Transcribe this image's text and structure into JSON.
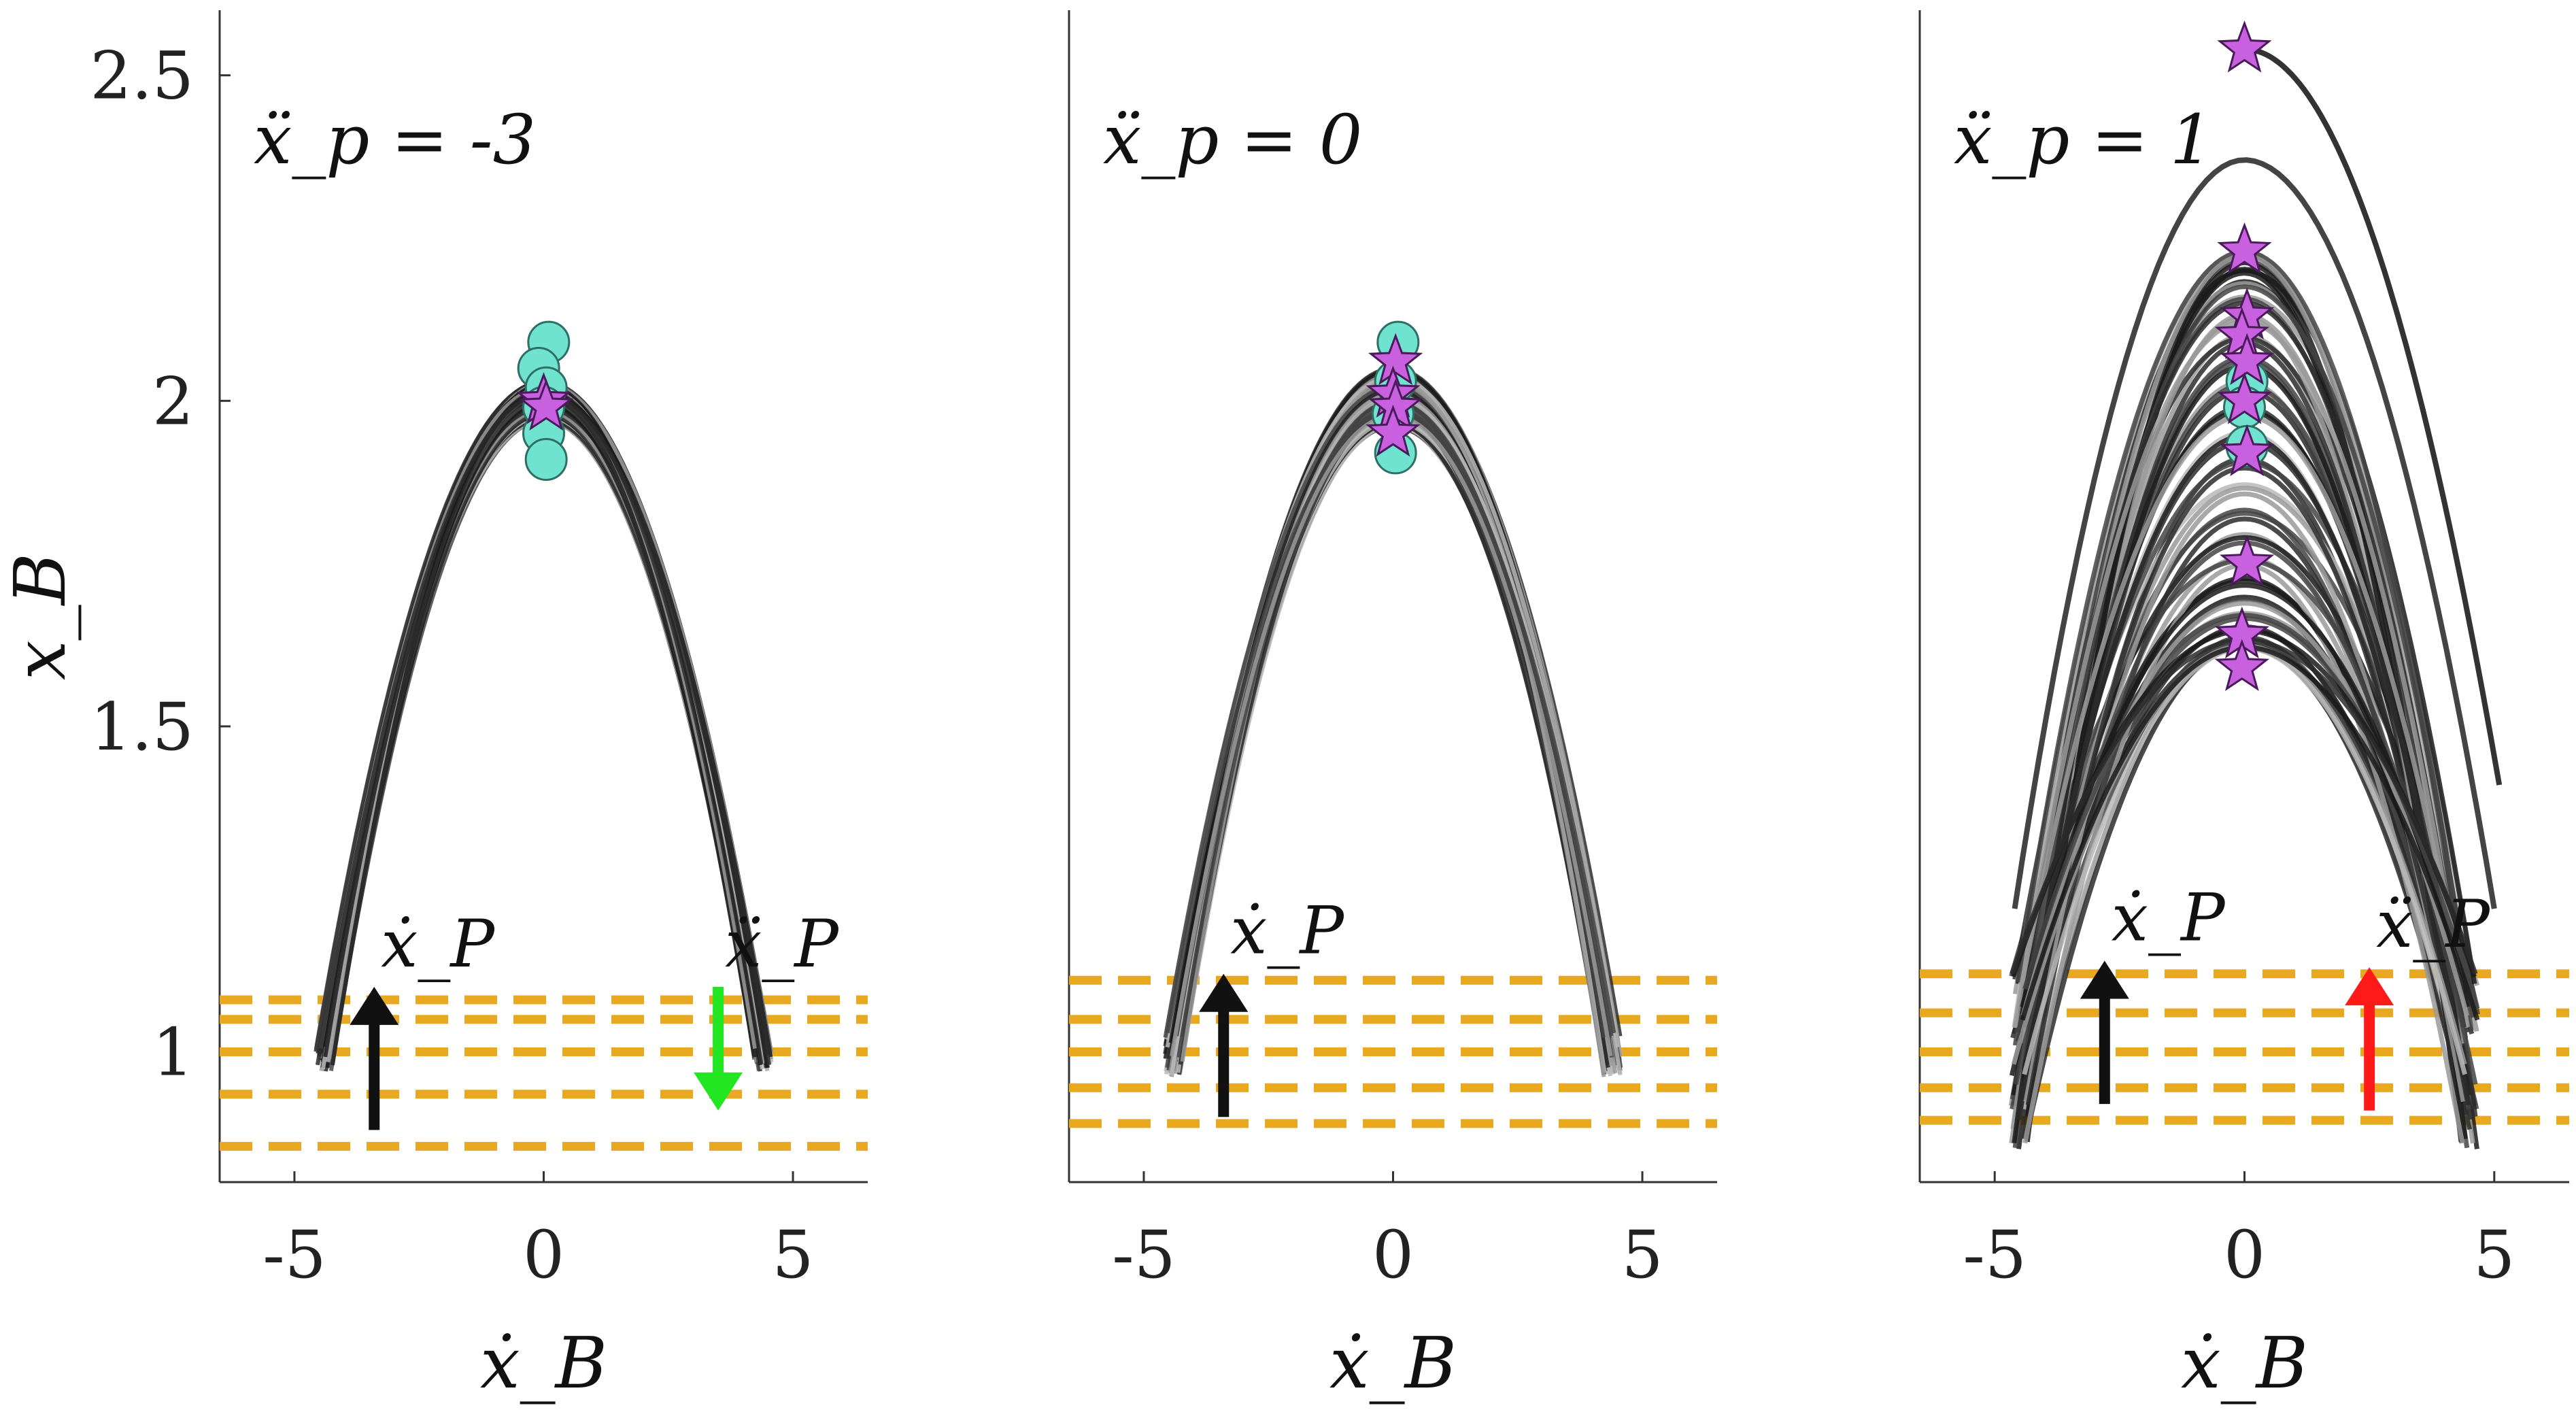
{
  "chart_data": [
    {
      "type": "line",
      "annotation": "ẍ_p = -3",
      "xlabel": "ẋ_B",
      "ylabel": "x_B",
      "xlim": [
        -6.5,
        6.5
      ],
      "ylim": [
        0.8,
        2.6
      ],
      "xticks": [
        -5,
        0,
        5
      ],
      "yticks": [
        1,
        1.5,
        2,
        2.5
      ],
      "xtick_labels": [
        "-5",
        "0",
        "5"
      ],
      "ytick_labels": [
        "1",
        "1.5",
        "2",
        "2.5"
      ],
      "trajectory_band": {
        "apex_x": 0,
        "apex_min": 1.97,
        "apex_max": 2.03,
        "end_min": 0.97,
        "end_max": 1.01,
        "speed": 4.4,
        "asymmetry": 0.0
      },
      "outliers": [],
      "circle_markers": [
        {
          "x": 0.1,
          "y": 2.09
        },
        {
          "x": -0.1,
          "y": 2.05
        },
        {
          "x": 0.05,
          "y": 2.02
        },
        {
          "x": 0.0,
          "y": 1.99
        },
        {
          "x": 0.0,
          "y": 1.95
        },
        {
          "x": 0.05,
          "y": 1.91
        }
      ],
      "star_markers": [
        {
          "x": 0.0,
          "y": 2.0
        },
        {
          "x": 0.05,
          "y": 1.99
        }
      ],
      "dashed_lines_y": [
        1.08,
        1.05,
        1.0,
        0.935,
        0.855
      ],
      "arrows": [
        {
          "label": "ẋ_P",
          "x": -3.4,
          "from": 0.88,
          "to": 1.1,
          "color": "#111111"
        },
        {
          "label": "ẍ_P",
          "x": 3.5,
          "from": 1.1,
          "to": 0.91,
          "color": "#22e622"
        }
      ]
    },
    {
      "type": "line",
      "annotation": "ẍ_p = 0",
      "xlabel": "ẋ_B",
      "ylabel": "",
      "xlim": [
        -6.5,
        6.5
      ],
      "ylim": [
        0.8,
        2.6
      ],
      "xticks": [
        -5,
        0,
        5
      ],
      "yticks": [],
      "xtick_labels": [
        "-5",
        "0",
        "5"
      ],
      "ytick_labels": [],
      "trajectory_band": {
        "apex_x": 0,
        "apex_min": 1.96,
        "apex_max": 2.05,
        "end_min": 0.96,
        "end_max": 1.03,
        "speed": 4.4,
        "asymmetry": 0.0
      },
      "outliers": [],
      "circle_markers": [
        {
          "x": 0.1,
          "y": 2.09
        },
        {
          "x": 0.05,
          "y": 2.03
        },
        {
          "x": 0.0,
          "y": 1.98
        },
        {
          "x": 0.05,
          "y": 1.92
        }
      ],
      "star_markers": [
        {
          "x": 0.05,
          "y": 2.06
        },
        {
          "x": 0.0,
          "y": 2.01
        },
        {
          "x": 0.05,
          "y": 1.99
        },
        {
          "x": 0.0,
          "y": 1.95
        }
      ],
      "dashed_lines_y": [
        1.11,
        1.05,
        1.0,
        0.945,
        0.89
      ],
      "arrows": [
        {
          "label": "ẋ_P",
          "x": -3.4,
          "from": 0.9,
          "to": 1.12,
          "color": "#111111"
        }
      ]
    },
    {
      "type": "line",
      "annotation": "ẍ_p = 1",
      "xlabel": "ẋ_B",
      "ylabel": "",
      "xlim": [
        -6.5,
        6.5
      ],
      "ylim": [
        0.8,
        2.6
      ],
      "xticks": [
        -5,
        0,
        5
      ],
      "yticks": [],
      "xtick_labels": [
        "-5",
        "0",
        "5"
      ],
      "ytick_labels": [],
      "trajectory_band": {
        "apex_x": 0,
        "apex_min": 1.62,
        "apex_max": 2.23,
        "end_min": 0.85,
        "end_max": 1.13,
        "speed": 4.5,
        "asymmetry": -0.6
      },
      "outliers": [
        {
          "apex_x": 0,
          "apex": 2.37,
          "x_start": -4.6,
          "y_start": 1.22,
          "x_end": 5.0,
          "y_end": 1.22,
          "shade": "#444444"
        },
        {
          "apex_x": 0,
          "apex": 2.54,
          "x_start": 0.0,
          "y_start": 2.54,
          "x_end": 5.1,
          "y_end": 1.41,
          "shade": "#333333"
        }
      ],
      "circle_markers": [
        {
          "x": 0.05,
          "y": 2.03
        },
        {
          "x": 0.0,
          "y": 1.99
        },
        {
          "x": 0.05,
          "y": 1.93
        }
      ],
      "star_markers": [
        {
          "x": 0.0,
          "y": 2.54
        },
        {
          "x": 0.0,
          "y": 2.23
        },
        {
          "x": 0.05,
          "y": 2.13
        },
        {
          "x": -0.05,
          "y": 2.1
        },
        {
          "x": 0.05,
          "y": 2.06
        },
        {
          "x": 0.0,
          "y": 2.0
        },
        {
          "x": 0.05,
          "y": 1.92
        },
        {
          "x": 0.05,
          "y": 1.75
        },
        {
          "x": -0.05,
          "y": 1.64
        },
        {
          "x": -0.05,
          "y": 1.59
        }
      ],
      "dashed_lines_y": [
        1.12,
        1.06,
        1.0,
        0.945,
        0.895
      ],
      "arrows": [
        {
          "label": "ẋ_P",
          "x": -2.8,
          "from": 0.92,
          "to": 1.14,
          "color": "#111111"
        },
        {
          "label": "ẍ_P",
          "x": 2.5,
          "from": 0.91,
          "to": 1.13,
          "color": "#ff1a1a"
        }
      ]
    }
  ]
}
